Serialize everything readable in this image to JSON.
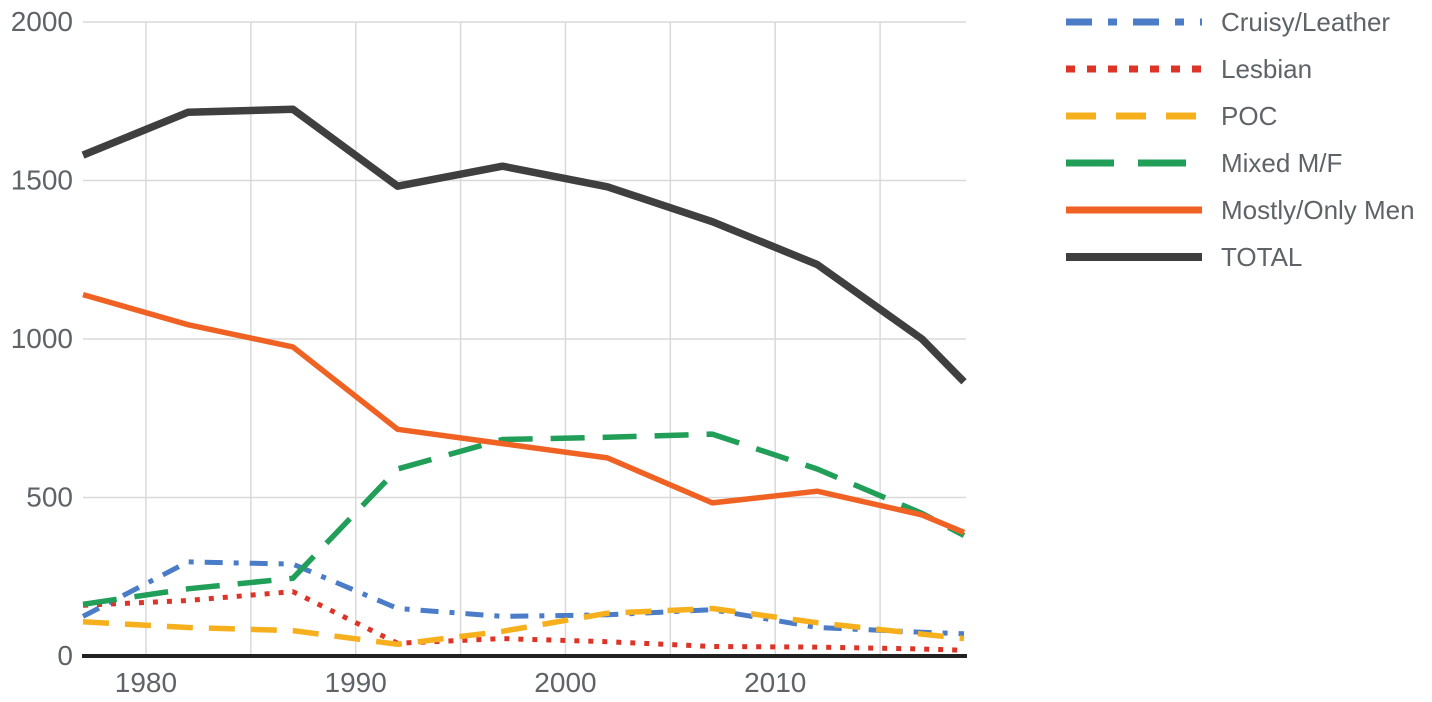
{
  "chart_data": {
    "type": "line",
    "x": [
      1977,
      1982,
      1987,
      1992,
      1997,
      2002,
      2007,
      2012,
      2017,
      2019
    ],
    "series": [
      {
        "name": "Cruisy/Leather",
        "color": "#4a7cc7",
        "style": "dash-dot",
        "width": 5,
        "values": [
          125,
          297,
          290,
          150,
          125,
          130,
          146,
          90,
          75,
          70
        ]
      },
      {
        "name": "Lesbian",
        "color": "#dd3427",
        "style": "dotted",
        "width": 5,
        "values": [
          160,
          175,
          203,
          40,
          55,
          45,
          30,
          28,
          22,
          18
        ]
      },
      {
        "name": "POC",
        "color": "#f6b01e",
        "style": "dashed",
        "width": 5.5,
        "values": [
          108,
          90,
          80,
          37,
          78,
          135,
          150,
          105,
          69,
          55
        ]
      },
      {
        "name": "Mixed M/F",
        "color": "#219e58",
        "style": "long-dash",
        "width": 5.5,
        "values": [
          163,
          212,
          245,
          590,
          683,
          690,
          700,
          590,
          450,
          380
        ]
      },
      {
        "name": "Mostly/Only Men",
        "color": "#f06224",
        "style": "solid",
        "width": 5.5,
        "values": [
          1140,
          1045,
          975,
          715,
          670,
          625,
          483,
          520,
          445,
          390
        ]
      },
      {
        "name": "TOTAL",
        "color": "#3f3f3f",
        "style": "solid",
        "width": 7.5,
        "values": [
          1580,
          1715,
          1725,
          1482,
          1545,
          1480,
          1370,
          1235,
          1000,
          865
        ]
      }
    ],
    "title": "",
    "xlabel": "",
    "ylabel": "",
    "xlim": [
      1977,
      2019
    ],
    "ylim": [
      0,
      2000
    ],
    "x_ticks": [
      1980,
      1990,
      2000,
      2010
    ],
    "x_gridlines": [
      1980,
      1985,
      1990,
      1995,
      2000,
      2005,
      2010,
      2015
    ],
    "y_ticks": [
      0,
      500,
      1000,
      1500,
      2000
    ],
    "grid": true,
    "legend_position": "top-right"
  },
  "style": {
    "background": "#ffffff",
    "gridline_color": "#d9d9d9",
    "axis_line_color": "#212121",
    "tick_label_color": "#5f6368",
    "legend_text_color": "#5f6368"
  }
}
